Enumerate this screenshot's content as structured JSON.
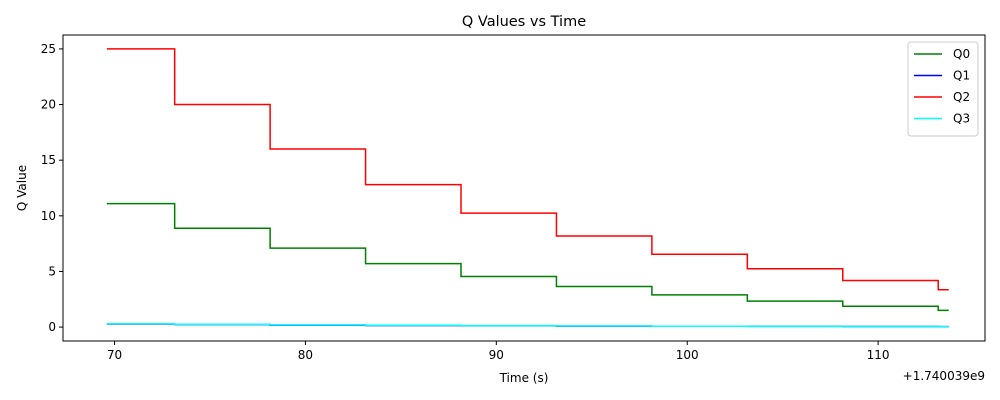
{
  "chart_data": {
    "type": "line",
    "title": "Q Values vs Time",
    "xlabel": "Time (s)",
    "ylabel": "Q Value",
    "x_offset_label": "+1.740039e9",
    "xlim": [
      67.3,
      115.6
    ],
    "ylim": [
      -1.25,
      26.25
    ],
    "xticks": [
      70,
      80,
      90,
      100,
      110
    ],
    "yticks": [
      0,
      5,
      10,
      15,
      20,
      25
    ],
    "grid": false,
    "legend_position": "top-right",
    "step_x": [
      69.6,
      73.15,
      78.15,
      83.15,
      88.15,
      93.15,
      98.15,
      103.15,
      108.15,
      113.15,
      113.7
    ],
    "series": [
      {
        "name": "Q0",
        "color": "#008000",
        "values": [
          11.1,
          8.88,
          7.1,
          5.7,
          4.55,
          3.65,
          2.9,
          2.33,
          1.87,
          1.5,
          1.5
        ]
      },
      {
        "name": "Q1",
        "color": "#0000ff",
        "values": [
          0.28,
          0.23,
          0.18,
          0.14,
          0.12,
          0.09,
          0.07,
          0.06,
          0.05,
          0.04,
          0.04
        ]
      },
      {
        "name": "Q2",
        "color": "#ff0000",
        "values": [
          25.0,
          20.0,
          16.0,
          12.8,
          10.24,
          8.19,
          6.55,
          5.24,
          4.19,
          3.36,
          3.36
        ]
      },
      {
        "name": "Q3",
        "color": "#00ffff",
        "values": [
          0.3,
          0.25,
          0.2,
          0.16,
          0.13,
          0.1,
          0.08,
          0.06,
          0.05,
          0.04,
          0.04
        ]
      }
    ]
  }
}
